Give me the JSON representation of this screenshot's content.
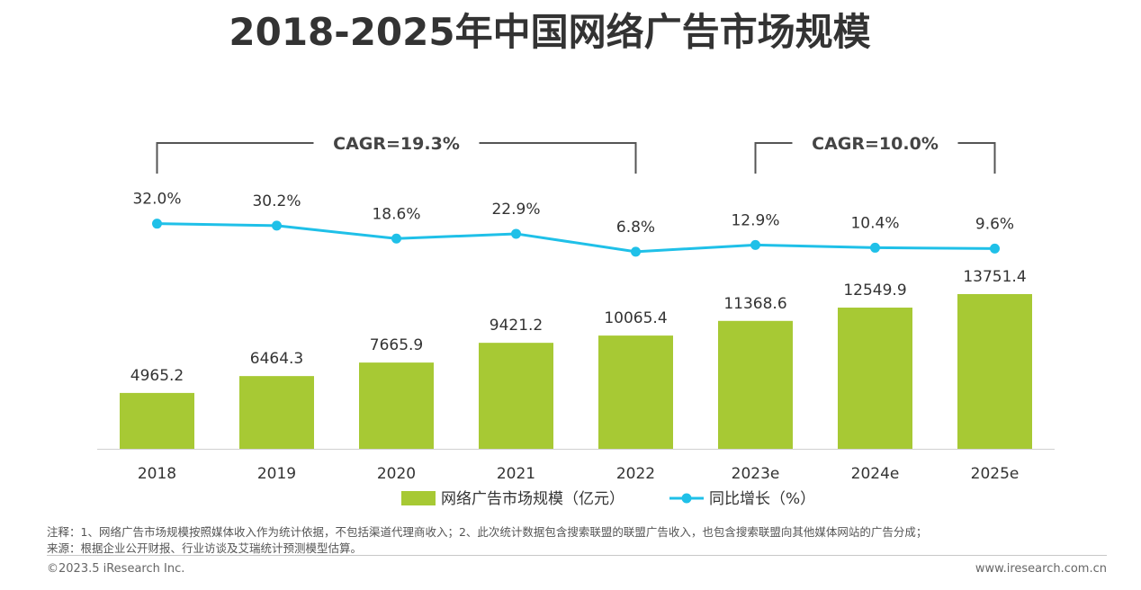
{
  "title": "2018-2025年中国网络广告市场规模",
  "chart_data": {
    "type": "bar",
    "categories": [
      "2018",
      "2019",
      "2020",
      "2021",
      "2022",
      "2023e",
      "2024e",
      "2025e"
    ],
    "series": [
      {
        "name": "网络广告市场规模（亿元）",
        "type": "bar",
        "values": [
          4965.2,
          6464.3,
          7665.9,
          9421.2,
          10065.4,
          11368.6,
          12549.9,
          13751.4
        ],
        "labels": [
          "4965.2",
          "6464.3",
          "7665.9",
          "9421.2",
          "10065.4",
          "11368.6",
          "12549.9",
          "13751.4"
        ],
        "color": "#a7c934"
      },
      {
        "name": "同比增长（%）",
        "type": "line",
        "values": [
          32.0,
          30.2,
          18.6,
          22.9,
          6.8,
          12.9,
          10.4,
          9.6
        ],
        "labels": [
          "32.0%",
          "30.2%",
          "18.6%",
          "22.9%",
          "6.8%",
          "12.9%",
          "10.4%",
          "9.6%"
        ],
        "color": "#1fc0e8"
      }
    ],
    "annotations": [
      {
        "text": "CAGR=19.3%",
        "from": "2018",
        "to": "2022"
      },
      {
        "text": "CAGR=10.0%",
        "from": "2023e",
        "to": "2025e"
      }
    ],
    "legend_position": "bottom",
    "grid": false
  },
  "footer": {
    "note1": "注释：1、网络广告市场规模按照媒体收入作为统计依据，不包括渠道代理商收入；2、此次统计数据包含搜索联盟的联盟广告收入，也包含搜索联盟向其他媒体网站的广告分成；",
    "note2": "来源：根据企业公开财报、行业访谈及艾瑞统计预测模型估算。",
    "copyright": "©2023.5 iResearch Inc.",
    "website": "www.iresearch.com.cn"
  }
}
